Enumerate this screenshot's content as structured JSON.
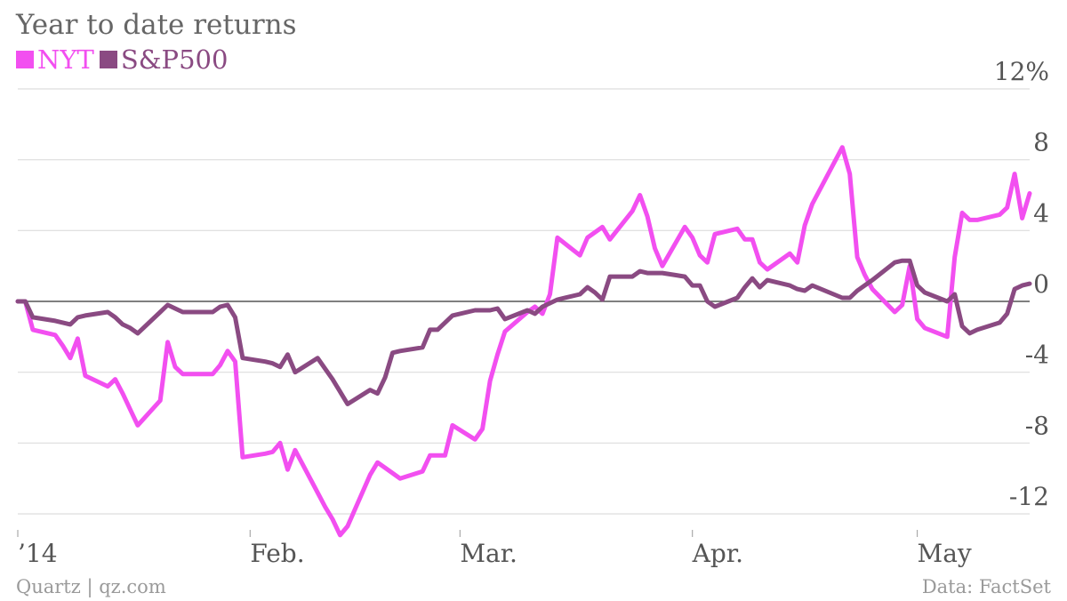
{
  "chart_data": {
    "type": "line",
    "title": "Year to date returns",
    "y_unit_suffix": "%",
    "ylim": [
      -13.5,
      13
    ],
    "y_ticks": [
      12,
      8,
      4,
      0,
      -4,
      -8,
      -12
    ],
    "y_tick_labels": [
      "12%",
      "8",
      "4",
      "0",
      "-4",
      "-8",
      "-12"
    ],
    "x_domain": [
      "2014-01-01",
      "2014-05-16"
    ],
    "x_ticks": [
      {
        "date": "2014-01-01",
        "label": "’14"
      },
      {
        "date": "2014-02-01",
        "label": "Feb."
      },
      {
        "date": "2014-03-01",
        "label": "Mar."
      },
      {
        "date": "2014-04-01",
        "label": "Apr."
      },
      {
        "date": "2014-05-01",
        "label": "May"
      }
    ],
    "grid": true,
    "legend_position": "top-left",
    "series": [
      {
        "name": "NYT",
        "color": "#f24ff0",
        "points": [
          [
            "2014-01-01",
            0.0
          ],
          [
            "2014-01-02",
            0.0
          ],
          [
            "2014-01-03",
            -1.6
          ],
          [
            "2014-01-06",
            -1.9
          ],
          [
            "2014-01-07",
            -2.5
          ],
          [
            "2014-01-08",
            -3.2
          ],
          [
            "2014-01-09",
            -2.1
          ],
          [
            "2014-01-10",
            -4.2
          ],
          [
            "2014-01-13",
            -4.8
          ],
          [
            "2014-01-14",
            -4.4
          ],
          [
            "2014-01-15",
            -5.2
          ],
          [
            "2014-01-16",
            -6.1
          ],
          [
            "2014-01-17",
            -7.0
          ],
          [
            "2014-01-20",
            -5.6
          ],
          [
            "2014-01-21",
            -2.3
          ],
          [
            "2014-01-22",
            -3.7
          ],
          [
            "2014-01-23",
            -4.1
          ],
          [
            "2014-01-24",
            -4.1
          ],
          [
            "2014-01-27",
            -4.1
          ],
          [
            "2014-01-28",
            -3.6
          ],
          [
            "2014-01-29",
            -2.8
          ],
          [
            "2014-01-30",
            -3.4
          ],
          [
            "2014-01-31",
            -8.8
          ],
          [
            "2014-02-03",
            -8.6
          ],
          [
            "2014-02-04",
            -8.5
          ],
          [
            "2014-02-05",
            -8.0
          ],
          [
            "2014-02-06",
            -9.5
          ],
          [
            "2014-02-07",
            -8.4
          ],
          [
            "2014-02-10",
            -10.8
          ],
          [
            "2014-02-11",
            -11.6
          ],
          [
            "2014-02-12",
            -12.3
          ],
          [
            "2014-02-13",
            -13.2
          ],
          [
            "2014-02-14",
            -12.7
          ],
          [
            "2014-02-17",
            -9.8
          ],
          [
            "2014-02-18",
            -9.1
          ],
          [
            "2014-02-19",
            -9.4
          ],
          [
            "2014-02-20",
            -9.7
          ],
          [
            "2014-02-21",
            -10.0
          ],
          [
            "2014-02-24",
            -9.6
          ],
          [
            "2014-02-25",
            -8.7
          ],
          [
            "2014-02-26",
            -8.7
          ],
          [
            "2014-02-27",
            -8.7
          ],
          [
            "2014-02-28",
            -7.0
          ],
          [
            "2014-03-03",
            -7.8
          ],
          [
            "2014-03-04",
            -7.2
          ],
          [
            "2014-03-05",
            -4.5
          ],
          [
            "2014-03-06",
            -3.0
          ],
          [
            "2014-03-07",
            -1.7
          ],
          [
            "2014-03-10",
            -0.6
          ],
          [
            "2014-03-11",
            -0.3
          ],
          [
            "2014-03-12",
            -0.7
          ],
          [
            "2014-03-13",
            0.4
          ],
          [
            "2014-03-14",
            3.6
          ],
          [
            "2014-03-17",
            2.6
          ],
          [
            "2014-03-18",
            3.6
          ],
          [
            "2014-03-19",
            3.9
          ],
          [
            "2014-03-20",
            4.2
          ],
          [
            "2014-03-21",
            3.5
          ],
          [
            "2014-03-24",
            5.1
          ],
          [
            "2014-03-25",
            6.0
          ],
          [
            "2014-03-26",
            4.8
          ],
          [
            "2014-03-27",
            3.0
          ],
          [
            "2014-03-28",
            2.0
          ],
          [
            "2014-03-31",
            4.2
          ],
          [
            "2014-04-01",
            3.6
          ],
          [
            "2014-04-02",
            2.6
          ],
          [
            "2014-04-03",
            2.2
          ],
          [
            "2014-04-04",
            3.8
          ],
          [
            "2014-04-07",
            4.1
          ],
          [
            "2014-04-08",
            3.5
          ],
          [
            "2014-04-09",
            3.5
          ],
          [
            "2014-04-10",
            2.2
          ],
          [
            "2014-04-11",
            1.8
          ],
          [
            "2014-04-14",
            2.7
          ],
          [
            "2014-04-15",
            2.2
          ],
          [
            "2014-04-16",
            4.3
          ],
          [
            "2014-04-17",
            5.5
          ],
          [
            "2014-04-21",
            8.7
          ],
          [
            "2014-04-22",
            7.2
          ],
          [
            "2014-04-23",
            2.5
          ],
          [
            "2014-04-24",
            1.5
          ],
          [
            "2014-04-25",
            0.7
          ],
          [
            "2014-04-28",
            -0.6
          ],
          [
            "2014-04-29",
            -0.2
          ],
          [
            "2014-04-30",
            2.0
          ],
          [
            "2014-05-01",
            -1.0
          ],
          [
            "2014-05-02",
            -1.5
          ],
          [
            "2014-05-05",
            -2.0
          ],
          [
            "2014-05-06",
            2.5
          ],
          [
            "2014-05-07",
            5.0
          ],
          [
            "2014-05-08",
            4.6
          ],
          [
            "2014-05-09",
            4.6
          ],
          [
            "2014-05-12",
            4.9
          ],
          [
            "2014-05-13",
            5.3
          ],
          [
            "2014-05-14",
            7.2
          ],
          [
            "2014-05-15",
            4.7
          ],
          [
            "2014-05-16",
            6.1
          ]
        ]
      },
      {
        "name": "S&P500",
        "color": "#8a4a82",
        "points": [
          [
            "2014-01-01",
            0.0
          ],
          [
            "2014-01-02",
            0.0
          ],
          [
            "2014-01-03",
            -0.9
          ],
          [
            "2014-01-06",
            -1.1
          ],
          [
            "2014-01-07",
            -1.2
          ],
          [
            "2014-01-08",
            -1.3
          ],
          [
            "2014-01-09",
            -0.9
          ],
          [
            "2014-01-10",
            -0.8
          ],
          [
            "2014-01-13",
            -0.6
          ],
          [
            "2014-01-14",
            -0.9
          ],
          [
            "2014-01-15",
            -1.3
          ],
          [
            "2014-01-16",
            -1.5
          ],
          [
            "2014-01-17",
            -1.8
          ],
          [
            "2014-01-20",
            -0.6
          ],
          [
            "2014-01-21",
            -0.2
          ],
          [
            "2014-01-22",
            -0.4
          ],
          [
            "2014-01-23",
            -0.6
          ],
          [
            "2014-01-24",
            -0.6
          ],
          [
            "2014-01-27",
            -0.6
          ],
          [
            "2014-01-28",
            -0.3
          ],
          [
            "2014-01-29",
            -0.2
          ],
          [
            "2014-01-30",
            -0.9
          ],
          [
            "2014-01-31",
            -3.2
          ],
          [
            "2014-02-03",
            -3.4
          ],
          [
            "2014-02-04",
            -3.5
          ],
          [
            "2014-02-05",
            -3.7
          ],
          [
            "2014-02-06",
            -3.0
          ],
          [
            "2014-02-07",
            -4.0
          ],
          [
            "2014-02-10",
            -3.2
          ],
          [
            "2014-02-11",
            -3.8
          ],
          [
            "2014-02-12",
            -4.4
          ],
          [
            "2014-02-13",
            -5.1
          ],
          [
            "2014-02-14",
            -5.8
          ],
          [
            "2014-02-17",
            -5.0
          ],
          [
            "2014-02-18",
            -5.2
          ],
          [
            "2014-02-19",
            -4.3
          ],
          [
            "2014-02-20",
            -2.9
          ],
          [
            "2014-02-21",
            -2.8
          ],
          [
            "2014-02-24",
            -2.6
          ],
          [
            "2014-02-25",
            -1.6
          ],
          [
            "2014-02-26",
            -1.6
          ],
          [
            "2014-02-27",
            -1.2
          ],
          [
            "2014-02-28",
            -0.8
          ],
          [
            "2014-03-03",
            -0.5
          ],
          [
            "2014-03-04",
            -0.5
          ],
          [
            "2014-03-05",
            -0.5
          ],
          [
            "2014-03-06",
            -0.4
          ],
          [
            "2014-03-07",
            -1.0
          ],
          [
            "2014-03-10",
            -0.5
          ],
          [
            "2014-03-11",
            -0.7
          ],
          [
            "2014-03-12",
            -0.3
          ],
          [
            "2014-03-13",
            -0.1
          ],
          [
            "2014-03-14",
            0.1
          ],
          [
            "2014-03-17",
            0.4
          ],
          [
            "2014-03-18",
            0.8
          ],
          [
            "2014-03-19",
            0.5
          ],
          [
            "2014-03-20",
            0.1
          ],
          [
            "2014-03-21",
            1.4
          ],
          [
            "2014-03-24",
            1.4
          ],
          [
            "2014-03-25",
            1.7
          ],
          [
            "2014-03-26",
            1.6
          ],
          [
            "2014-03-27",
            1.6
          ],
          [
            "2014-03-28",
            1.6
          ],
          [
            "2014-03-31",
            1.4
          ],
          [
            "2014-04-01",
            0.9
          ],
          [
            "2014-04-02",
            0.9
          ],
          [
            "2014-04-03",
            0.0
          ],
          [
            "2014-04-04",
            -0.3
          ],
          [
            "2014-04-07",
            0.2
          ],
          [
            "2014-04-08",
            0.8
          ],
          [
            "2014-04-09",
            1.3
          ],
          [
            "2014-04-10",
            0.8
          ],
          [
            "2014-04-11",
            1.2
          ],
          [
            "2014-04-14",
            0.9
          ],
          [
            "2014-04-15",
            0.7
          ],
          [
            "2014-04-16",
            0.6
          ],
          [
            "2014-04-17",
            0.9
          ],
          [
            "2014-04-21",
            0.2
          ],
          [
            "2014-04-22",
            0.2
          ],
          [
            "2014-04-23",
            0.6
          ],
          [
            "2014-04-24",
            0.9
          ],
          [
            "2014-04-25",
            1.2
          ],
          [
            "2014-04-28",
            2.2
          ],
          [
            "2014-04-29",
            2.3
          ],
          [
            "2014-04-30",
            2.3
          ],
          [
            "2014-05-01",
            0.9
          ],
          [
            "2014-05-02",
            0.5
          ],
          [
            "2014-05-05",
            0.0
          ],
          [
            "2014-05-06",
            0.4
          ],
          [
            "2014-05-07",
            -1.4
          ],
          [
            "2014-05-08",
            -1.8
          ],
          [
            "2014-05-09",
            -1.6
          ],
          [
            "2014-05-12",
            -1.2
          ],
          [
            "2014-05-13",
            -0.7
          ],
          [
            "2014-05-14",
            0.7
          ],
          [
            "2014-05-15",
            0.9
          ],
          [
            "2014-05-16",
            1.0
          ]
        ]
      }
    ]
  },
  "footer": {
    "credit": "Quartz | qz.com",
    "source": "Data: FactSet"
  }
}
